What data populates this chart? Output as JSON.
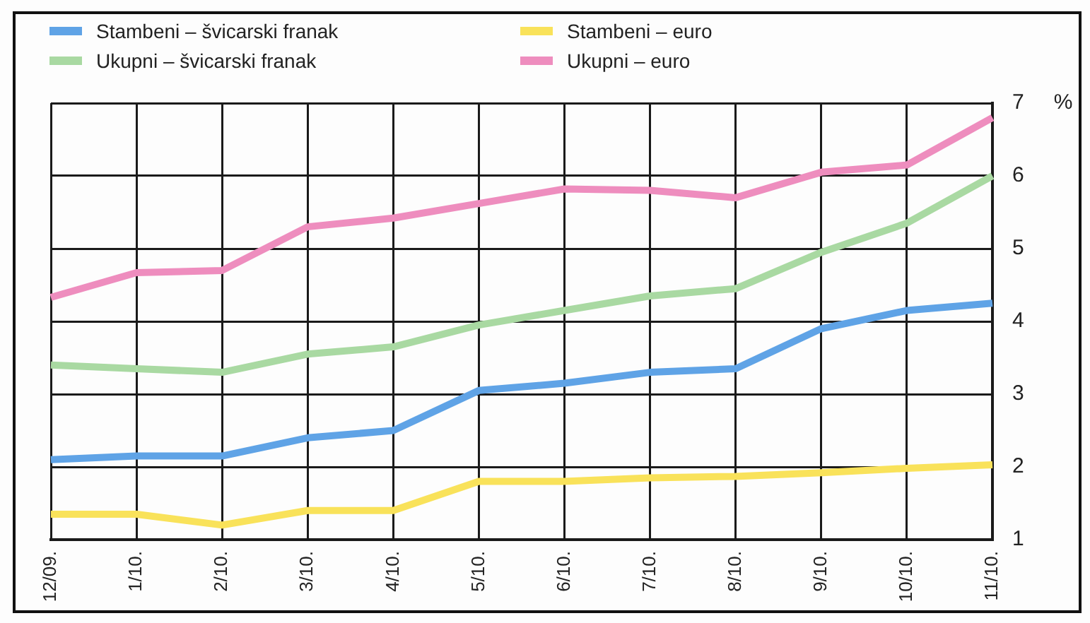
{
  "chart_data": {
    "type": "line",
    "categories": [
      "12/09.",
      "1/10.",
      "2/10.",
      "3/10.",
      "4/10.",
      "5/10.",
      "6/10.",
      "7/10.",
      "8/10.",
      "9/10.",
      "10/10.",
      "11/10."
    ],
    "series": [
      {
        "name": "Stambeni – švicarski franak",
        "color": "#5fa3e6",
        "values": [
          2.1,
          2.15,
          2.15,
          2.4,
          2.5,
          3.05,
          3.15,
          3.3,
          3.35,
          3.9,
          4.15,
          4.25
        ]
      },
      {
        "name": "Ukupni – švicarski franak",
        "color": "#a9d9a2",
        "values": [
          3.4,
          3.35,
          3.3,
          3.55,
          3.65,
          3.95,
          4.15,
          4.35,
          4.45,
          4.95,
          5.35,
          6.0
        ]
      },
      {
        "name": "Stambeni – euro",
        "color": "#f9e25a",
        "values": [
          1.35,
          1.35,
          1.2,
          1.4,
          1.4,
          1.8,
          1.8,
          1.85,
          1.87,
          1.92,
          1.98,
          2.03
        ]
      },
      {
        "name": "Ukupni – euro",
        "color": "#ee8dbe",
        "values": [
          4.33,
          4.67,
          4.7,
          5.3,
          5.42,
          5.62,
          5.82,
          5.8,
          5.7,
          6.05,
          6.15,
          6.8
        ]
      }
    ],
    "ylabel": "%",
    "ylim": [
      1,
      7
    ],
    "yticks": [
      1,
      2,
      3,
      4,
      5,
      6,
      7
    ],
    "grid": true,
    "legend": "top left"
  }
}
